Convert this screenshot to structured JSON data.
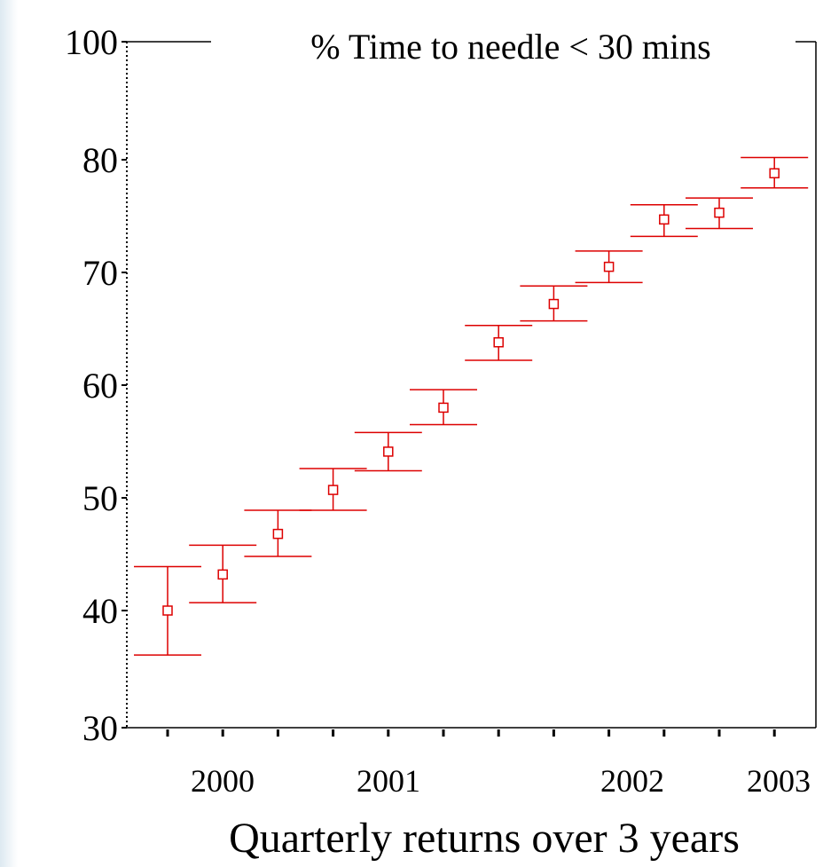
{
  "chart_data": {
    "type": "scatter",
    "title": "% Time to needle < 30 mins",
    "xlabel": "Quarterly returns over 3 years",
    "ylabel": "",
    "ylim": [
      30,
      100
    ],
    "yticks": [
      "30",
      "40",
      "50",
      "60",
      "70",
      "80",
      "100"
    ],
    "xtick_labels": [
      "2000",
      "2001",
      "2002",
      "2003"
    ],
    "grid": false,
    "colors": {
      "series": "#dd0000",
      "axis": "#000000"
    },
    "series": [
      {
        "points": [
          {
            "x": 1,
            "y": 40.0,
            "lower": 36.2,
            "upper": 43.9
          },
          {
            "x": 2,
            "y": 43.2,
            "lower": 40.7,
            "upper": 45.8
          },
          {
            "x": 3,
            "y": 46.8,
            "lower": 44.8,
            "upper": 48.9
          },
          {
            "x": 4,
            "y": 50.7,
            "lower": 48.9,
            "upper": 52.6
          },
          {
            "x": 5,
            "y": 54.1,
            "lower": 52.4,
            "upper": 55.8
          },
          {
            "x": 6,
            "y": 58.0,
            "lower": 56.5,
            "upper": 59.6
          },
          {
            "x": 7,
            "y": 63.8,
            "lower": 62.2,
            "upper": 65.3
          },
          {
            "x": 8,
            "y": 67.2,
            "lower": 65.7,
            "upper": 68.8
          },
          {
            "x": 9,
            "y": 70.5,
            "lower": 69.1,
            "upper": 71.9
          },
          {
            "x": 10,
            "y": 74.7,
            "lower": 73.2,
            "upper": 76.0
          },
          {
            "x": 11,
            "y": 75.3,
            "lower": 73.9,
            "upper": 76.6
          },
          {
            "x": 12,
            "y": 78.8,
            "lower": 77.5,
            "upper": 80.2
          }
        ]
      }
    ]
  }
}
